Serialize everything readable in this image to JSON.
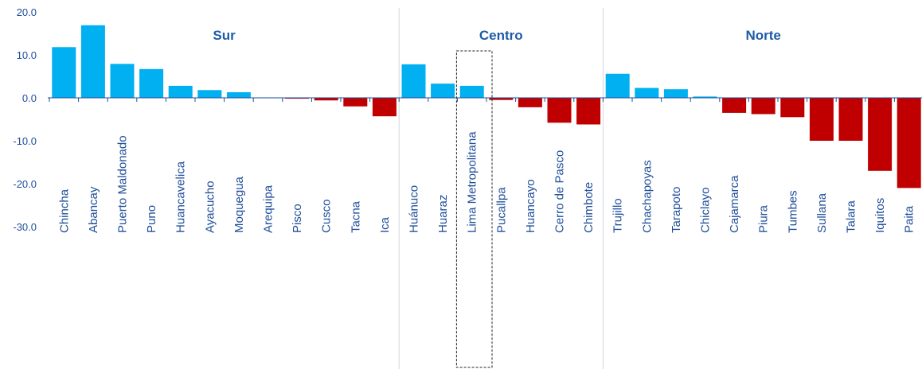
{
  "chart_data": {
    "type": "bar",
    "ylim": [
      -30,
      20
    ],
    "yticks": [
      "20.0",
      "10.0",
      "0.0",
      "-10.0",
      "-20.0",
      "-30.0"
    ],
    "ytick_values": [
      20,
      10,
      0,
      -10,
      -20,
      -30
    ],
    "colors": {
      "positive": "#00b0f0",
      "negative": "#c00000",
      "divider": "#d0d5dc",
      "axis": "#1f4e9a"
    },
    "regions": [
      {
        "name": "Sur",
        "start": 0,
        "end": 11
      },
      {
        "name": "Centro",
        "start": 12,
        "end": 18
      },
      {
        "name": "Norte",
        "start": 19,
        "end": 29
      }
    ],
    "highlight_index": 14,
    "categories": [
      "Chincha",
      "Abancay",
      "Puerto Maldonado",
      "Puno",
      "Huancavelica",
      "Ayacucho",
      "Moquegua",
      "Arequipa",
      "Pisco",
      "Cusco",
      "Tacna",
      "Ica",
      "Huánuco",
      "Huaraz",
      "Lima Metropolitana",
      "Pucallpa",
      "Huancayo",
      "Cerro de Pasco",
      "Chimbote",
      "Trujillo",
      "Chachapoyas",
      "Tarapoto",
      "Chiclayo",
      "Cajamarca",
      "Piura",
      "Tumbes",
      "Sullana",
      "Talara",
      "Iquitos",
      "Paita"
    ],
    "values": [
      11.8,
      16.9,
      7.9,
      6.7,
      2.8,
      1.8,
      1.3,
      0.1,
      -0.2,
      -0.6,
      -2.0,
      -4.3,
      7.8,
      3.3,
      2.8,
      -0.5,
      -2.2,
      -5.8,
      -6.2,
      5.6,
      2.3,
      2.0,
      0.3,
      -3.5,
      -3.8,
      -4.5,
      -10.0,
      -10.0,
      -17.0,
      -21.0
    ]
  }
}
